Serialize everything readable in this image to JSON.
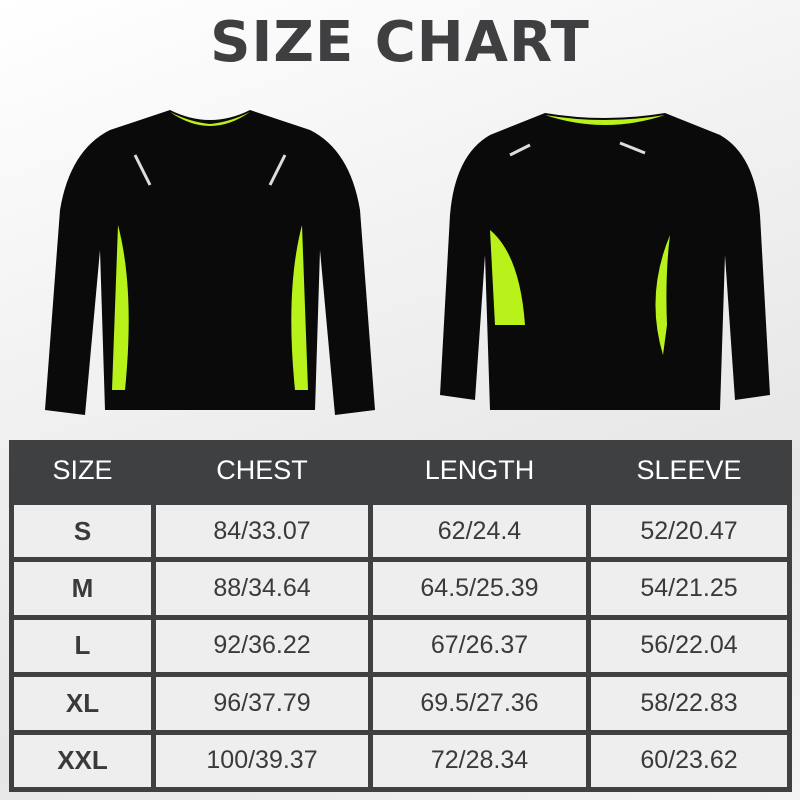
{
  "title": "SIZE CHART",
  "colors": {
    "header_bg": "#3f4042",
    "shirt": "#0a0a0a",
    "accent": "#b8f21a"
  },
  "table": {
    "headers": [
      "SIZE",
      "CHEST",
      "LENGTH",
      "SLEEVE"
    ],
    "rows": [
      [
        "S",
        "84/33.07",
        "62/24.4",
        "52/20.47"
      ],
      [
        "M",
        "88/34.64",
        "64.5/25.39",
        "54/21.25"
      ],
      [
        "L",
        "92/36.22",
        "67/26.37",
        "56/22.04"
      ],
      [
        "XL",
        "96/37.79",
        "69.5/27.36",
        "58/22.83"
      ],
      [
        "XXL",
        "100/39.37",
        "72/28.34",
        "60/23.62"
      ]
    ]
  }
}
